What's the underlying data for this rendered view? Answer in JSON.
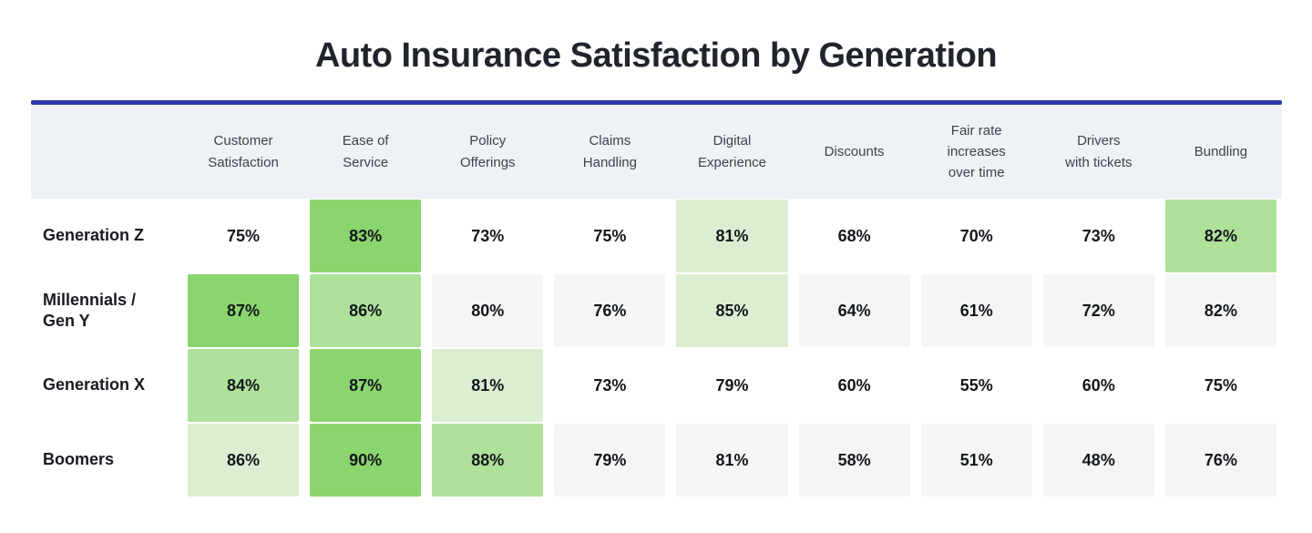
{
  "title": "Auto Insurance Satisfaction by Generation",
  "colors": {
    "accent_line": "#2a39ae",
    "header_band": "#eef1f5",
    "cell_white": "#ffffff",
    "cell_gray": "#f4f5f5",
    "green_strong": "#8ad56e",
    "green_medium": "#aee19a",
    "green_light": "#dbeed2"
  },
  "chart_data": {
    "type": "heatmap",
    "title": "Auto Insurance Satisfaction by Generation",
    "value_format": "percent",
    "legend": "green shading marks the top three scores within each generation row: strong = highest, medium = 2nd, light = 3rd",
    "columns": [
      "Customer Satisfaction",
      "Ease of Service",
      "Policy Offerings",
      "Claims Handling",
      "Digital Experience",
      "Discounts",
      "Fair rate increases over time",
      "Drivers with tickets",
      "Bundling"
    ],
    "columns_display": [
      "Customer\nSatisfaction",
      "Ease of\nService",
      "Policy\nOfferings",
      "Claims\nHandling",
      "Digital\nExperience",
      "Discounts",
      "Fair rate\nincreases\nover time",
      "Drivers\nwith tickets",
      "Bundling"
    ],
    "row_labels_display": [
      "Generation Z",
      "Millennials /\nGen Y",
      "Generation X",
      "Boomers"
    ],
    "rows": [
      {
        "label": "Generation Z",
        "values": [
          75,
          83,
          73,
          75,
          81,
          68,
          70,
          73,
          82
        ],
        "highlights": [
          "none",
          "strong",
          "none",
          "none",
          "light",
          "none",
          "none",
          "none",
          "medium"
        ],
        "zebra": false
      },
      {
        "label": "Millennials / Gen Y",
        "values": [
          87,
          86,
          80,
          76,
          85,
          64,
          61,
          72,
          82
        ],
        "highlights": [
          "strong",
          "medium",
          "none",
          "none",
          "light",
          "none",
          "none",
          "none",
          "none"
        ],
        "zebra": true
      },
      {
        "label": "Generation X",
        "values": [
          84,
          87,
          81,
          73,
          79,
          60,
          55,
          60,
          75
        ],
        "highlights": [
          "medium",
          "strong",
          "light",
          "none",
          "none",
          "none",
          "none",
          "none",
          "none"
        ],
        "zebra": false
      },
      {
        "label": "Boomers",
        "values": [
          86,
          90,
          88,
          79,
          81,
          58,
          51,
          48,
          76
        ],
        "highlights": [
          "light",
          "strong",
          "medium",
          "none",
          "none",
          "none",
          "none",
          "none",
          "none"
        ],
        "zebra": true
      }
    ]
  }
}
